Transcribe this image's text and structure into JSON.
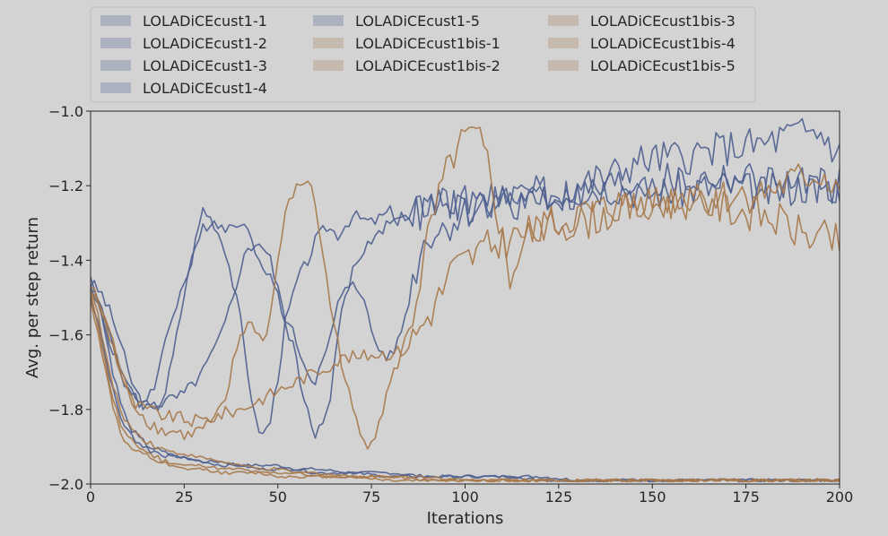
{
  "chart_data": {
    "type": "line",
    "xlabel": "Iterations",
    "ylabel": "Avg. per step return",
    "xlim": [
      0,
      200
    ],
    "ylim": [
      -2.0,
      -1.0
    ],
    "x_ticks": [
      "0",
      "25",
      "50",
      "75",
      "100",
      "125",
      "150",
      "175",
      "200"
    ],
    "y_ticks": [
      "−2.0",
      "−1.8",
      "−1.6",
      "−1.4",
      "−1.2",
      "−1.0"
    ],
    "grid": false,
    "legend_position": "top",
    "legend_columns": 3,
    "colors": {
      "blue": "#4c5e8f",
      "orange": "#a6784a",
      "background": "#d3d3d3"
    },
    "series": [
      {
        "name": "LOLADiCEcust1-1",
        "color": "#4c5e8f",
        "x": [
          0,
          3,
          6,
          8,
          10,
          12,
          15,
          18,
          20,
          22,
          25,
          28,
          30,
          33,
          36,
          38,
          40,
          42,
          44,
          46,
          48,
          50,
          52,
          55,
          58,
          60,
          63,
          66,
          70,
          75,
          80,
          85,
          90,
          95,
          100,
          110,
          120,
          130,
          140,
          150,
          160,
          170,
          180,
          190,
          200
        ],
        "y": [
          -1.46,
          -1.49,
          -1.56,
          -1.62,
          -1.7,
          -1.75,
          -1.8,
          -1.79,
          -1.75,
          -1.66,
          -1.49,
          -1.35,
          -1.26,
          -1.3,
          -1.37,
          -1.46,
          -1.56,
          -1.7,
          -1.83,
          -1.87,
          -1.83,
          -1.71,
          -1.57,
          -1.46,
          -1.4,
          -1.35,
          -1.31,
          -1.33,
          -1.28,
          -1.3,
          -1.27,
          -1.29,
          -1.24,
          -1.23,
          -1.28,
          -1.23,
          -1.22,
          -1.21,
          -1.2,
          -1.22,
          -1.21,
          -1.2,
          -1.22,
          -1.2,
          -1.2
        ]
      },
      {
        "name": "LOLADiCEcust1-2",
        "color": "#4c5e8f",
        "x": [
          0,
          3,
          6,
          8,
          10,
          12,
          15,
          18,
          20,
          22,
          25,
          28,
          30,
          33,
          36,
          38,
          40,
          42,
          45,
          48,
          50,
          52,
          55,
          57,
          60,
          62,
          64,
          66,
          68,
          70,
          73,
          76,
          80,
          84,
          88,
          90,
          95,
          100,
          110,
          120,
          130,
          140,
          150,
          160,
          170,
          180,
          190,
          200
        ],
        "y": [
          -1.47,
          -1.53,
          -1.62,
          -1.69,
          -1.74,
          -1.78,
          -1.77,
          -1.71,
          -1.61,
          -1.54,
          -1.46,
          -1.38,
          -1.31,
          -1.29,
          -1.32,
          -1.3,
          -1.29,
          -1.33,
          -1.39,
          -1.44,
          -1.5,
          -1.57,
          -1.66,
          -1.78,
          -1.86,
          -1.85,
          -1.76,
          -1.6,
          -1.5,
          -1.43,
          -1.37,
          -1.33,
          -1.3,
          -1.28,
          -1.28,
          -1.26,
          -1.25,
          -1.24,
          -1.25,
          -1.23,
          -1.23,
          -1.2,
          -1.19,
          -1.19,
          -1.18,
          -1.19,
          -1.2,
          -1.2
        ]
      },
      {
        "name": "LOLADiCEcust1-3",
        "color": "#4c5e8f",
        "x": [
          0,
          3,
          6,
          8,
          10,
          13,
          16,
          20,
          25,
          30,
          35,
          38,
          40,
          42,
          45,
          48,
          50,
          52,
          55,
          58,
          60,
          63,
          66,
          70,
          72,
          74,
          76,
          78,
          80,
          82,
          84,
          86,
          88,
          90,
          93,
          96,
          100,
          110,
          120,
          130,
          140,
          145,
          150,
          160,
          170,
          180,
          185,
          190,
          195,
          200
        ],
        "y": [
          -1.48,
          -1.55,
          -1.64,
          -1.7,
          -1.75,
          -1.78,
          -1.79,
          -1.78,
          -1.76,
          -1.7,
          -1.6,
          -1.5,
          -1.42,
          -1.37,
          -1.35,
          -1.4,
          -1.48,
          -1.55,
          -1.62,
          -1.7,
          -1.72,
          -1.65,
          -1.52,
          -1.45,
          -1.48,
          -1.55,
          -1.62,
          -1.65,
          -1.66,
          -1.62,
          -1.55,
          -1.46,
          -1.38,
          -1.33,
          -1.32,
          -1.3,
          -1.27,
          -1.23,
          -1.24,
          -1.2,
          -1.17,
          -1.14,
          -1.13,
          -1.12,
          -1.1,
          -1.09,
          -1.07,
          -1.06,
          -1.06,
          -1.12
        ]
      },
      {
        "name": "LOLADiCEcust1-4",
        "color": "#4c5e8f",
        "x": [
          0,
          2,
          4,
          6,
          8,
          10,
          13,
          16,
          20,
          25,
          30,
          35,
          40,
          45,
          50,
          55,
          60,
          70,
          80,
          90,
          100,
          110,
          120,
          130,
          140,
          150,
          160,
          170,
          180,
          190,
          200
        ],
        "y": [
          -1.45,
          -1.5,
          -1.6,
          -1.7,
          -1.78,
          -1.84,
          -1.88,
          -1.9,
          -1.92,
          -1.93,
          -1.94,
          -1.95,
          -1.95,
          -1.96,
          -1.96,
          -1.96,
          -1.97,
          -1.97,
          -1.98,
          -1.98,
          -1.98,
          -1.98,
          -1.99,
          -1.99,
          -1.99,
          -1.99,
          -1.99,
          -1.99,
          -1.99,
          -1.99,
          -1.99
        ]
      },
      {
        "name": "LOLADiCEcust1-5",
        "color": "#4c5e8f",
        "x": [
          0,
          2,
          4,
          6,
          8,
          10,
          13,
          16,
          20,
          25,
          30,
          35,
          40,
          45,
          50,
          55,
          60,
          70,
          80,
          90,
          100,
          110,
          120,
          130,
          140,
          150,
          160,
          170,
          180,
          190,
          200
        ],
        "y": [
          -1.5,
          -1.56,
          -1.66,
          -1.75,
          -1.82,
          -1.86,
          -1.89,
          -1.91,
          -1.92,
          -1.93,
          -1.94,
          -1.94,
          -1.95,
          -1.95,
          -1.95,
          -1.96,
          -1.96,
          -1.97,
          -1.97,
          -1.98,
          -1.98,
          -1.98,
          -1.98,
          -1.99,
          -1.99,
          -1.99,
          -1.99,
          -1.99,
          -1.99,
          -1.99,
          -1.99
        ]
      },
      {
        "name": "LOLADiCEcust1bis-1",
        "color": "#a6784a",
        "x": [
          0,
          3,
          6,
          8,
          10,
          12,
          15,
          18,
          20,
          23,
          26,
          30,
          33,
          36,
          38,
          40,
          42,
          44,
          46,
          48,
          50,
          52,
          54,
          56,
          58,
          60,
          62,
          64,
          66,
          68,
          70,
          72,
          74,
          76,
          78,
          80,
          83,
          86,
          90,
          94,
          97,
          100,
          102,
          104,
          106,
          108,
          110,
          112,
          114,
          116,
          120,
          125,
          130,
          140,
          150,
          160,
          170,
          180,
          190,
          195,
          200
        ],
        "y": [
          -1.47,
          -1.53,
          -1.62,
          -1.69,
          -1.76,
          -1.79,
          -1.83,
          -1.85,
          -1.86,
          -1.86,
          -1.87,
          -1.85,
          -1.83,
          -1.78,
          -1.68,
          -1.6,
          -1.57,
          -1.58,
          -1.62,
          -1.55,
          -1.4,
          -1.28,
          -1.22,
          -1.2,
          -1.18,
          -1.25,
          -1.38,
          -1.52,
          -1.62,
          -1.72,
          -1.8,
          -1.87,
          -1.89,
          -1.86,
          -1.8,
          -1.73,
          -1.65,
          -1.55,
          -1.35,
          -1.2,
          -1.12,
          -1.08,
          -1.07,
          -1.09,
          -1.14,
          -1.24,
          -1.35,
          -1.45,
          -1.4,
          -1.35,
          -1.31,
          -1.3,
          -1.28,
          -1.26,
          -1.24,
          -1.23,
          -1.23,
          -1.22,
          -1.18,
          -1.17,
          -1.2
        ]
      },
      {
        "name": "LOLADiCEcust1bis-2",
        "color": "#a6784a",
        "x": [
          0,
          3,
          6,
          8,
          10,
          12,
          15,
          18,
          20,
          23,
          26,
          30,
          33,
          36,
          40,
          44,
          48,
          52,
          56,
          60,
          64,
          68,
          72,
          76,
          80,
          84,
          88,
          90,
          93,
          96,
          100,
          105,
          110,
          115,
          120,
          125,
          130,
          140,
          150,
          160,
          170,
          180,
          185,
          190,
          195,
          200
        ],
        "y": [
          -1.48,
          -1.54,
          -1.63,
          -1.7,
          -1.76,
          -1.79,
          -1.8,
          -1.81,
          -1.82,
          -1.82,
          -1.83,
          -1.83,
          -1.82,
          -1.81,
          -1.8,
          -1.78,
          -1.76,
          -1.74,
          -1.72,
          -1.7,
          -1.68,
          -1.66,
          -1.66,
          -1.65,
          -1.65,
          -1.64,
          -1.58,
          -1.55,
          -1.5,
          -1.43,
          -1.4,
          -1.37,
          -1.35,
          -1.33,
          -1.32,
          -1.3,
          -1.3,
          -1.27,
          -1.25,
          -1.24,
          -1.26,
          -1.28,
          -1.3,
          -1.33,
          -1.34,
          -1.35
        ]
      },
      {
        "name": "LOLADiCEcust1bis-3",
        "color": "#a6784a",
        "x": [
          0,
          2,
          4,
          6,
          8,
          10,
          13,
          16,
          20,
          25,
          30,
          35,
          40,
          45,
          50,
          55,
          60,
          70,
          80,
          90,
          100,
          110,
          120,
          130,
          140,
          150,
          160,
          170,
          180,
          190,
          200
        ],
        "y": [
          -1.47,
          -1.55,
          -1.65,
          -1.74,
          -1.8,
          -1.84,
          -1.87,
          -1.89,
          -1.91,
          -1.92,
          -1.93,
          -1.94,
          -1.95,
          -1.96,
          -1.96,
          -1.97,
          -1.97,
          -1.98,
          -1.98,
          -1.98,
          -1.99,
          -1.99,
          -1.99,
          -1.99,
          -1.99,
          -1.99,
          -1.99,
          -1.99,
          -1.99,
          -1.99,
          -1.99
        ]
      },
      {
        "name": "LOLADiCEcust1bis-4",
        "color": "#a6784a",
        "x": [
          0,
          2,
          4,
          6,
          8,
          10,
          13,
          16,
          20,
          25,
          30,
          35,
          40,
          45,
          50,
          55,
          60,
          70,
          80,
          90,
          100,
          110,
          120,
          130,
          140,
          150,
          160,
          170,
          180,
          190,
          200
        ],
        "y": [
          -1.49,
          -1.57,
          -1.68,
          -1.77,
          -1.84,
          -1.88,
          -1.9,
          -1.92,
          -1.94,
          -1.95,
          -1.95,
          -1.96,
          -1.96,
          -1.97,
          -1.97,
          -1.97,
          -1.98,
          -1.98,
          -1.98,
          -1.99,
          -1.99,
          -1.99,
          -1.99,
          -1.99,
          -1.99,
          -1.99,
          -1.99,
          -1.99,
          -1.99,
          -1.99,
          -1.99
        ]
      },
      {
        "name": "LOLADiCEcust1bis-5",
        "color": "#a6784a",
        "x": [
          0,
          2,
          4,
          6,
          8,
          10,
          13,
          16,
          20,
          25,
          30,
          35,
          40,
          45,
          50,
          55,
          60,
          70,
          80,
          90,
          100,
          110,
          120,
          130,
          140,
          150,
          160,
          170,
          180,
          190,
          200
        ],
        "y": [
          -1.51,
          -1.59,
          -1.7,
          -1.79,
          -1.86,
          -1.9,
          -1.92,
          -1.93,
          -1.95,
          -1.96,
          -1.96,
          -1.97,
          -1.97,
          -1.97,
          -1.98,
          -1.98,
          -1.98,
          -1.98,
          -1.99,
          -1.99,
          -1.99,
          -1.99,
          -1.99,
          -1.99,
          -1.99,
          -1.99,
          -1.99,
          -1.99,
          -1.99,
          -1.99,
          -1.99
        ]
      }
    ]
  }
}
